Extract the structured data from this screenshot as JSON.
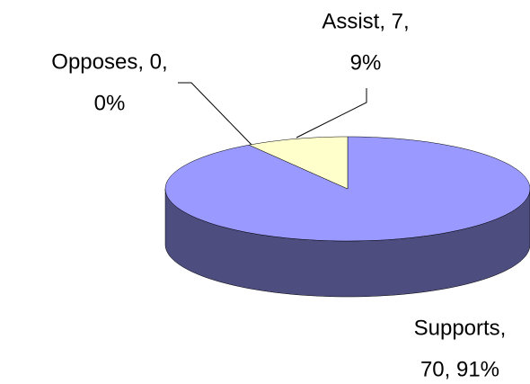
{
  "chart_data": {
    "type": "pie3d",
    "categories": [
      "Supports",
      "Assist",
      "Opposes"
    ],
    "values": [
      70,
      7,
      0
    ],
    "value_labels": [
      [
        "Supports,",
        "70, 91%"
      ],
      [
        "Assist, 7,",
        "9%"
      ],
      [
        "Opposes, 0,",
        "0%"
      ]
    ],
    "colors": [
      "#9999ff",
      "#ffffcc",
      "#993366"
    ]
  }
}
